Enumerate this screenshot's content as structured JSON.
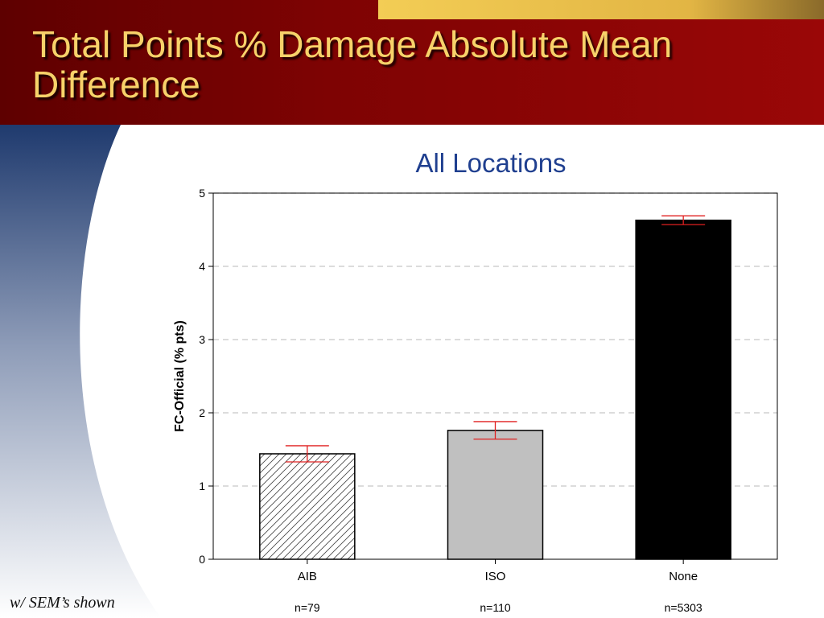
{
  "slide": {
    "title": "Total Points % Damage Absolute Mean Difference",
    "footnote": "w/ SEM’s shown"
  },
  "colors": {
    "header_dark": "#5e0000",
    "header_red": "#9a0707",
    "accent_gold": "#f3cd55",
    "title_text": "#f7d26a",
    "swoosh_blue": "#1f3a6e",
    "subtitle_blue": "#1f3f8f",
    "error_bar": "#e02020"
  },
  "chart_data": {
    "type": "bar",
    "title": "All Locations",
    "ylabel": "FC-Official (% pts)",
    "xlabel": "",
    "ylim": [
      0,
      5
    ],
    "yticks": [
      0,
      1,
      2,
      3,
      4,
      5
    ],
    "grid": "horizontal-dashed",
    "categories": [
      "AIB",
      "ISO",
      "None"
    ],
    "values": [
      1.44,
      1.76,
      4.63
    ],
    "sem": [
      0.11,
      0.12,
      0.06
    ],
    "sample_sizes": [
      "n=79",
      "n=110",
      "n=5303"
    ],
    "bar_styles": [
      {
        "fill": "#ffffff",
        "pattern": "hatch"
      },
      {
        "fill": "#c0c0c0",
        "pattern": "solid"
      },
      {
        "fill": "#000000",
        "pattern": "solid"
      }
    ]
  }
}
